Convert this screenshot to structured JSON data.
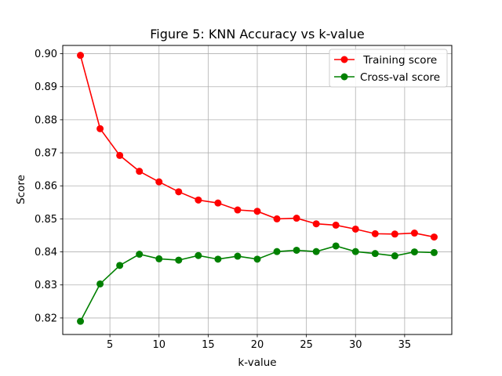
{
  "chart_data": {
    "type": "line",
    "title": "Figure 5: KNN Accuracy vs k-value",
    "xlabel": "k-value",
    "ylabel": "Score",
    "x": [
      2,
      4,
      6,
      8,
      10,
      12,
      14,
      16,
      18,
      20,
      22,
      24,
      26,
      28,
      30,
      32,
      34,
      36,
      38
    ],
    "xlim": [
      0.2,
      39.8
    ],
    "ylim": [
      0.815,
      0.9025
    ],
    "xticks": [
      "5",
      "10",
      "15",
      "20",
      "25",
      "30",
      "35"
    ],
    "yticks": [
      "0.82",
      "0.83",
      "0.84",
      "0.85",
      "0.86",
      "0.87",
      "0.88",
      "0.89",
      "0.90"
    ],
    "grid": true,
    "legend_position": "top-right",
    "series": [
      {
        "name": " Training score",
        "color": "#ff0000",
        "marker": "circle",
        "values": [
          0.8995,
          0.8773,
          0.8692,
          0.8644,
          0.8612,
          0.8582,
          0.8557,
          0.8548,
          0.8527,
          0.8523,
          0.85,
          0.8502,
          0.8485,
          0.8481,
          0.8469,
          0.8455,
          0.8454,
          0.8457,
          0.8445
        ]
      },
      {
        "name": "Cross-val score",
        "color": "#008000",
        "marker": "circle",
        "values": [
          0.819,
          0.8303,
          0.8359,
          0.8393,
          0.8379,
          0.8375,
          0.8389,
          0.8378,
          0.8387,
          0.8378,
          0.8401,
          0.8405,
          0.8401,
          0.8418,
          0.8401,
          0.8395,
          0.8388,
          0.84,
          0.8398
        ]
      }
    ]
  }
}
